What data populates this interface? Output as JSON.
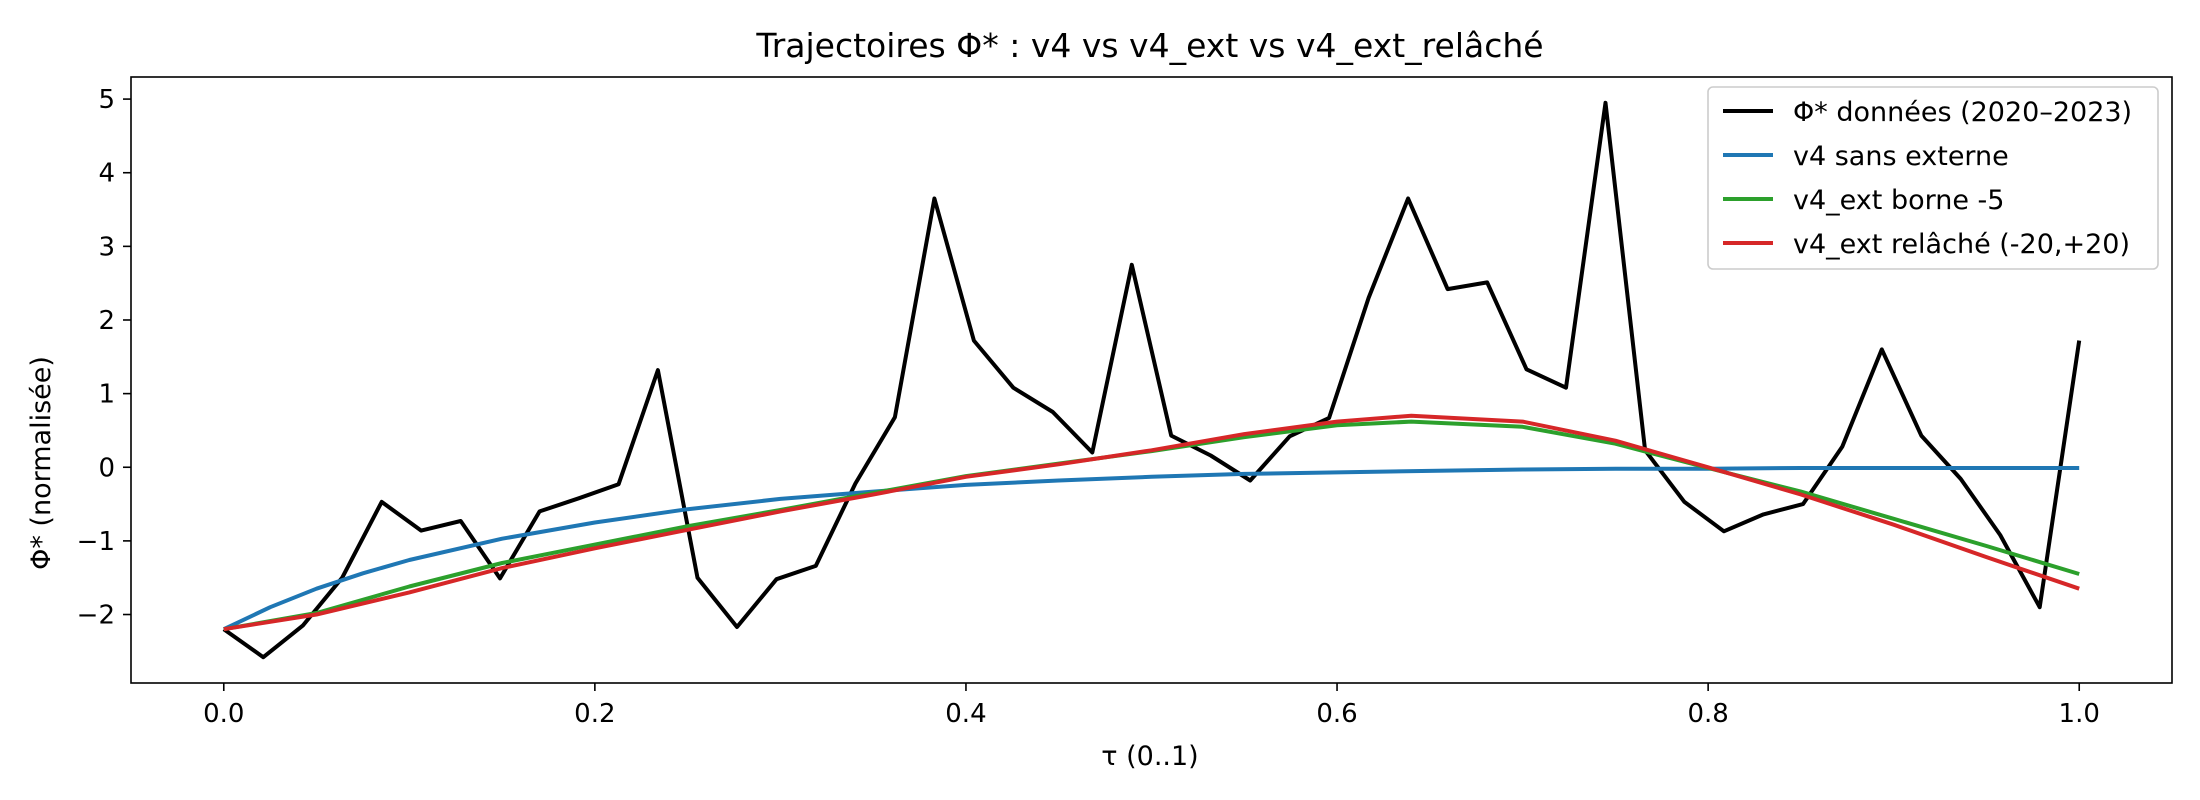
{
  "chart_data": {
    "type": "line",
    "title": "Trajectoires Φ* : v4 vs v4_ext vs v4_ext_relâché",
    "xlabel": "τ (0..1)",
    "ylabel": "Φ* (normalisée)",
    "xlim": [
      -0.05,
      1.05
    ],
    "ylim": [
      -2.93,
      5.3
    ],
    "xticks": [
      0.0,
      0.2,
      0.4,
      0.6,
      0.8,
      1.0
    ],
    "xtick_labels": [
      "0.0",
      "0.2",
      "0.4",
      "0.6",
      "0.8",
      "1.0"
    ],
    "yticks": [
      -2,
      -1,
      0,
      1,
      2,
      3,
      4,
      5
    ],
    "ytick_labels": [
      "−2",
      "−1",
      "0",
      "1",
      "2",
      "3",
      "4",
      "5"
    ],
    "grid": false,
    "legend_position": "top-right",
    "series": [
      {
        "name": "Φ* données (2020–2023)",
        "color": "#000000",
        "x": [
          0.0,
          0.0213,
          0.0426,
          0.0638,
          0.0851,
          0.1064,
          0.1277,
          0.1489,
          0.1702,
          0.1915,
          0.2128,
          0.234,
          0.2553,
          0.2766,
          0.2979,
          0.3191,
          0.3404,
          0.3617,
          0.383,
          0.4043,
          0.4255,
          0.4468,
          0.4681,
          0.4894,
          0.5106,
          0.5319,
          0.5532,
          0.5745,
          0.5957,
          0.617,
          0.6383,
          0.6596,
          0.6809,
          0.7021,
          0.7234,
          0.7447,
          0.766,
          0.7872,
          0.8085,
          0.8298,
          0.8511,
          0.8723,
          0.8936,
          0.9149,
          0.9362,
          0.9574,
          0.9787,
          1.0
        ],
        "values": [
          -2.2,
          -2.58,
          -2.15,
          -1.5,
          -0.47,
          -0.86,
          -0.73,
          -1.51,
          -0.6,
          -0.42,
          -0.23,
          1.32,
          -1.5,
          -2.17,
          -1.52,
          -1.34,
          -0.22,
          0.68,
          3.65,
          1.72,
          1.08,
          0.75,
          0.2,
          2.75,
          0.43,
          0.16,
          -0.18,
          0.42,
          0.67,
          2.3,
          3.65,
          2.42,
          2.51,
          1.33,
          1.08,
          4.95,
          0.23,
          -0.47,
          -0.87,
          -0.64,
          -0.5,
          0.28,
          1.6,
          0.43,
          -0.16,
          -0.92,
          -1.9,
          1.72
        ]
      },
      {
        "name": "v4 sans externe",
        "color": "#1f77b4",
        "x": [
          0.0,
          0.025,
          0.05,
          0.075,
          0.1,
          0.15,
          0.2,
          0.25,
          0.3,
          0.35,
          0.4,
          0.45,
          0.5,
          0.55,
          0.6,
          0.65,
          0.7,
          0.75,
          0.8,
          0.85,
          0.9,
          0.95,
          1.0
        ],
        "values": [
          -2.2,
          -1.9,
          -1.65,
          -1.44,
          -1.26,
          -0.97,
          -0.75,
          -0.57,
          -0.43,
          -0.33,
          -0.24,
          -0.18,
          -0.13,
          -0.09,
          -0.07,
          -0.05,
          -0.03,
          -0.02,
          -0.02,
          -0.01,
          -0.01,
          -0.01,
          -0.01
        ]
      },
      {
        "name": "v4_ext borne -5",
        "color": "#2ca02c",
        "x": [
          0.0,
          0.05,
          0.1,
          0.15,
          0.2,
          0.25,
          0.3,
          0.35,
          0.4,
          0.45,
          0.5,
          0.55,
          0.6,
          0.64,
          0.7,
          0.75,
          0.8,
          0.85,
          0.9,
          0.95,
          1.0
        ],
        "values": [
          -2.2,
          -1.98,
          -1.62,
          -1.3,
          -1.05,
          -0.8,
          -0.58,
          -0.35,
          -0.12,
          0.05,
          0.22,
          0.41,
          0.57,
          0.62,
          0.55,
          0.32,
          -0.01,
          -0.33,
          -0.7,
          -1.07,
          -1.45
        ]
      },
      {
        "name": "v4_ext relâché (-20,+20)",
        "color": "#d62728",
        "x": [
          0.0,
          0.05,
          0.1,
          0.15,
          0.2,
          0.25,
          0.3,
          0.35,
          0.4,
          0.45,
          0.5,
          0.55,
          0.6,
          0.64,
          0.7,
          0.75,
          0.8,
          0.85,
          0.9,
          0.95,
          1.0
        ],
        "values": [
          -2.2,
          -2.0,
          -1.7,
          -1.37,
          -1.1,
          -0.85,
          -0.6,
          -0.37,
          -0.13,
          0.04,
          0.23,
          0.45,
          0.62,
          0.7,
          0.62,
          0.36,
          0.0,
          -0.37,
          -0.78,
          -1.22,
          -1.65
        ]
      }
    ]
  }
}
